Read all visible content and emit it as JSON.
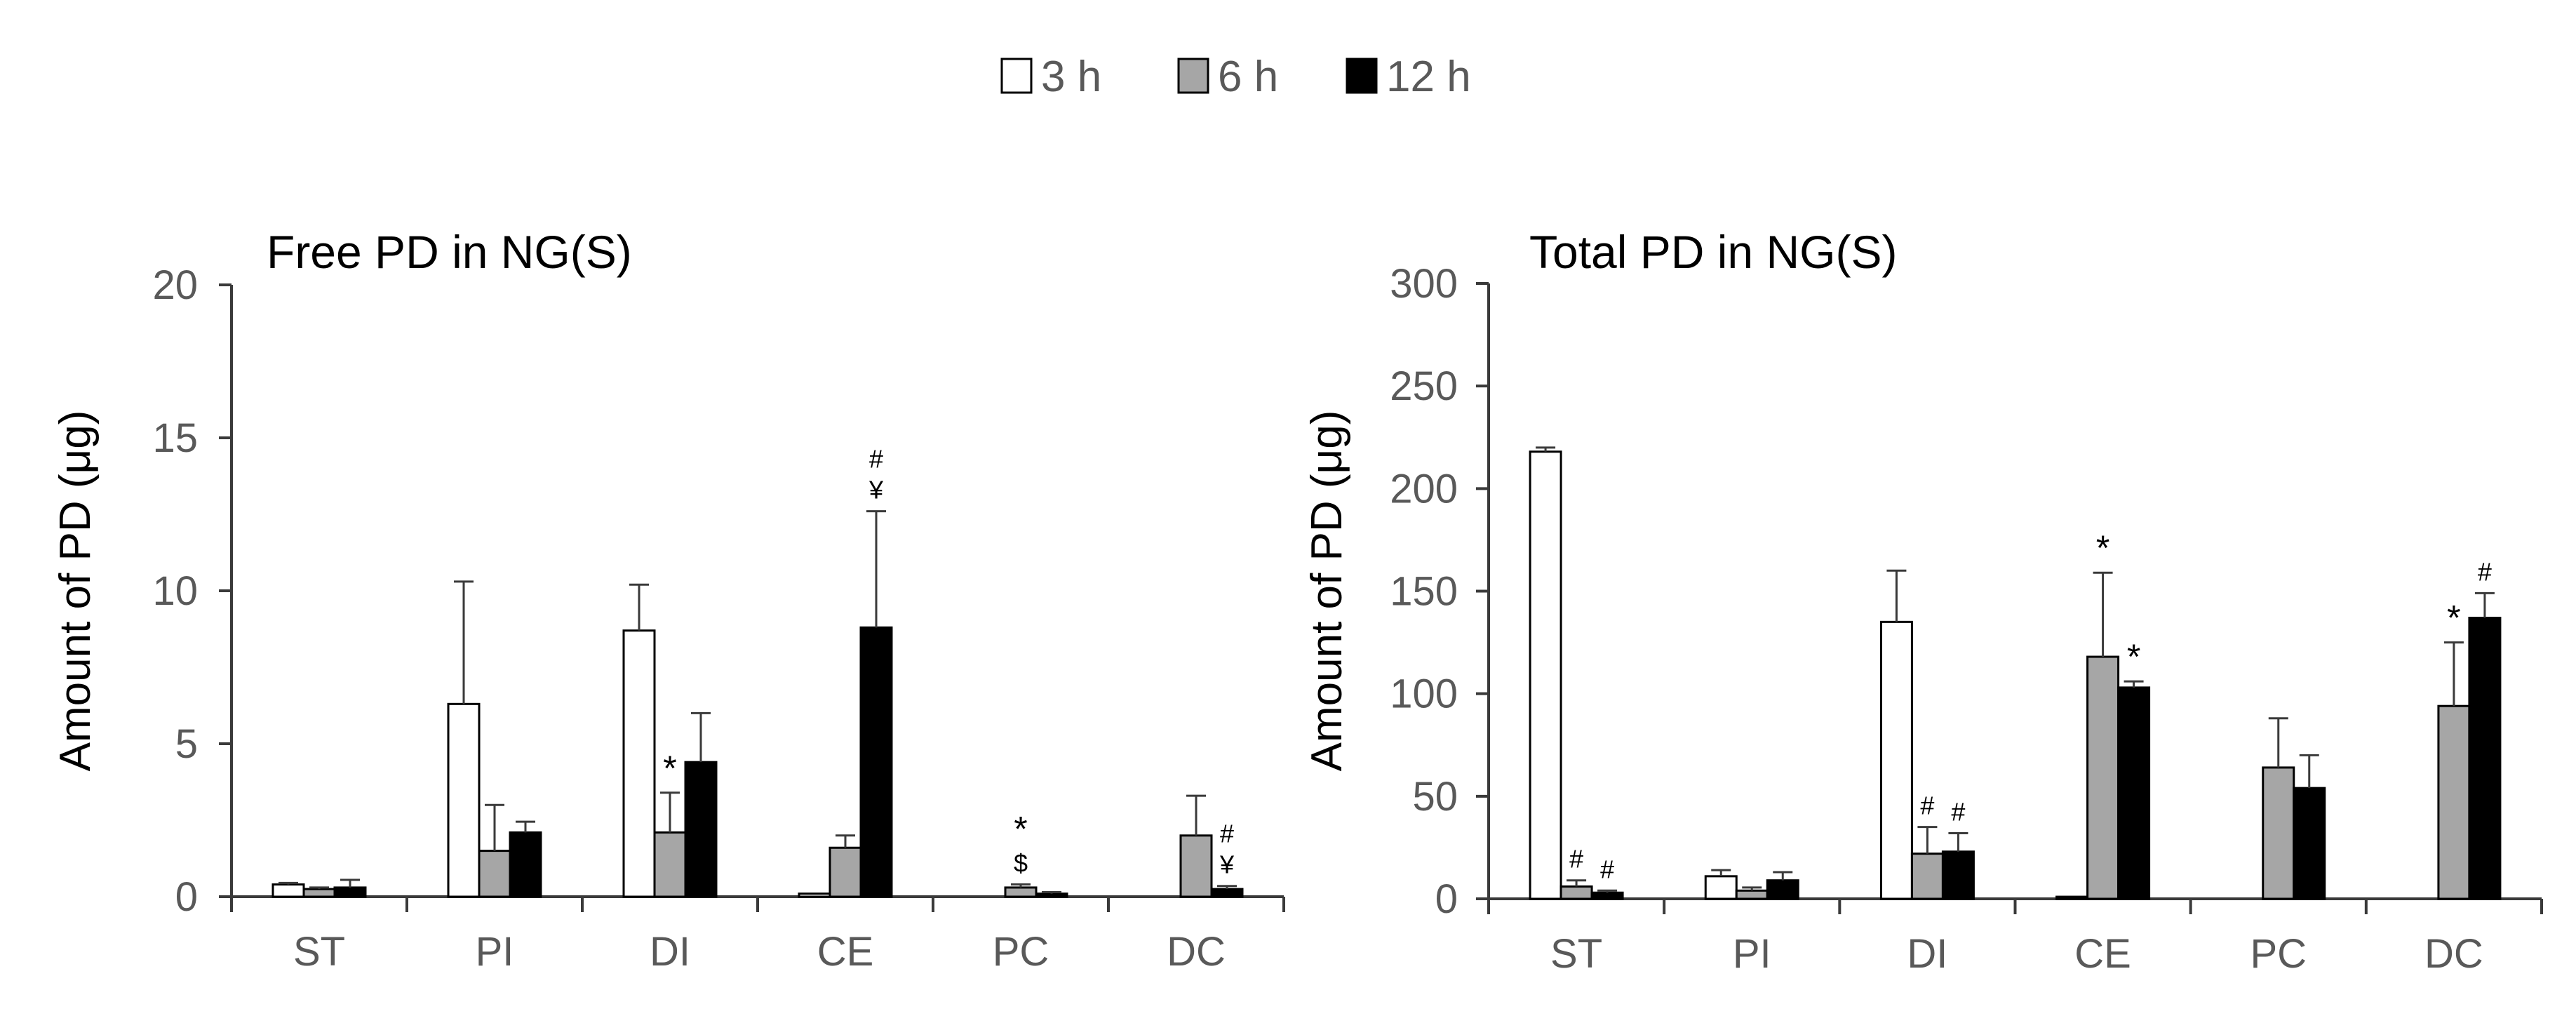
{
  "legend": {
    "entries": [
      {
        "label": "3 h",
        "color": "#ffffff"
      },
      {
        "label": "6 h",
        "color": "#a6a6a6"
      },
      {
        "label": "12 h",
        "color": "#000000"
      }
    ]
  },
  "colors": {
    "axis": "#3a3a3a",
    "tick_label": "#595959",
    "title": "#000000",
    "error_bar": "#3a3a3a"
  },
  "chart_data": [
    {
      "type": "bar",
      "title": "Free PD in NG(S)",
      "xlabel": "",
      "ylabel": "Amount of PD (μg)",
      "ylim": [
        0,
        20
      ],
      "yticks": [
        0,
        5,
        10,
        15,
        20
      ],
      "categories": [
        "ST",
        "PI",
        "DI",
        "CE",
        "PC",
        "DC"
      ],
      "series": [
        {
          "name": "3 h",
          "values": [
            0.4,
            6.3,
            8.7,
            0.1,
            0.0,
            0.0
          ],
          "errors": [
            0.05,
            4.0,
            1.5,
            0.0,
            0.0,
            0.0
          ]
        },
        {
          "name": "6 h",
          "values": [
            0.25,
            1.5,
            2.1,
            1.6,
            0.3,
            2.0
          ],
          "errors": [
            0.05,
            1.5,
            1.3,
            0.4,
            0.1,
            1.3
          ]
        },
        {
          "name": "12 h",
          "values": [
            0.3,
            2.1,
            4.4,
            8.8,
            0.1,
            0.25
          ],
          "errors": [
            0.25,
            0.35,
            1.6,
            3.8,
            0.05,
            0.1
          ]
        }
      ],
      "annotations": [
        {
          "category": "DI",
          "series": "6 h",
          "lines": [
            "*"
          ]
        },
        {
          "category": "CE",
          "series": "12 h",
          "lines": [
            "#",
            "¥"
          ]
        },
        {
          "category": "PC",
          "series": "6 h",
          "lines": [
            "*",
            "$"
          ]
        },
        {
          "category": "DC",
          "series": "12 h",
          "lines": [
            "#",
            "¥"
          ]
        }
      ]
    },
    {
      "type": "bar",
      "title": "Total PD in NG(S)",
      "xlabel": "",
      "ylabel": "Amount of PD (μg)",
      "ylim": [
        0,
        300
      ],
      "yticks": [
        0,
        50,
        100,
        150,
        200,
        250,
        300
      ],
      "categories": [
        "ST",
        "PI",
        "DI",
        "CE",
        "PC",
        "DC"
      ],
      "series": [
        {
          "name": "3 h",
          "values": [
            218,
            11,
            135,
            1,
            0,
            0
          ],
          "errors": [
            2,
            3,
            25,
            0,
            0,
            0
          ]
        },
        {
          "name": "6 h",
          "values": [
            6,
            4,
            22,
            118,
            64,
            94
          ],
          "errors": [
            3,
            1.5,
            13,
            41,
            24,
            31
          ]
        },
        {
          "name": "12 h",
          "values": [
            3,
            9,
            23,
            103,
            54,
            137
          ],
          "errors": [
            1,
            4,
            9,
            3,
            16,
            12
          ]
        }
      ],
      "annotations": [
        {
          "category": "ST",
          "series": "6 h",
          "lines": [
            "#"
          ]
        },
        {
          "category": "ST",
          "series": "12 h",
          "lines": [
            "#"
          ]
        },
        {
          "category": "DI",
          "series": "6 h",
          "lines": [
            "#"
          ]
        },
        {
          "category": "DI",
          "series": "12 h",
          "lines": [
            "#"
          ]
        },
        {
          "category": "CE",
          "series": "6 h",
          "lines": [
            "*"
          ]
        },
        {
          "category": "CE",
          "series": "12 h",
          "lines": [
            "*"
          ]
        },
        {
          "category": "DC",
          "series": "6 h",
          "lines": [
            "*"
          ]
        },
        {
          "category": "DC",
          "series": "12 h",
          "lines": [
            "#"
          ]
        }
      ]
    }
  ]
}
